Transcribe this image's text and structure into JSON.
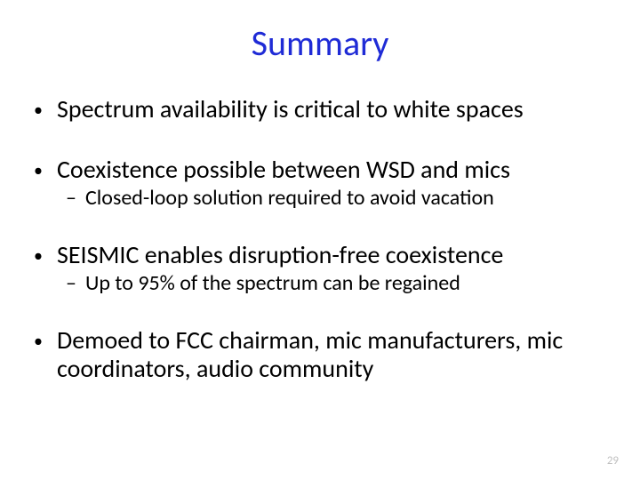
{
  "title": {
    "text": "Summary",
    "color": "#1f2bd6",
    "fontsize": 40
  },
  "bullets": {
    "b1": "Spectrum availability is critical to white spaces",
    "b2": "Coexistence possible between WSD and mics",
    "b2_sub": "Closed-loop solution required to avoid vacation",
    "b3": "SEISMIC enables disruption-free coexistence",
    "b3_sub": "Up to 95% of the spectrum can be regained",
    "b4": "Demoed to FCC chairman, mic manufacturers, mic coordinators, audio community"
  },
  "page_number": "29",
  "colors": {
    "background": "#ffffff",
    "body_text": "#000000",
    "page_number": "#bfbfbf"
  },
  "fontsize": {
    "level1": 28,
    "level2": 24,
    "page_number": 13
  }
}
